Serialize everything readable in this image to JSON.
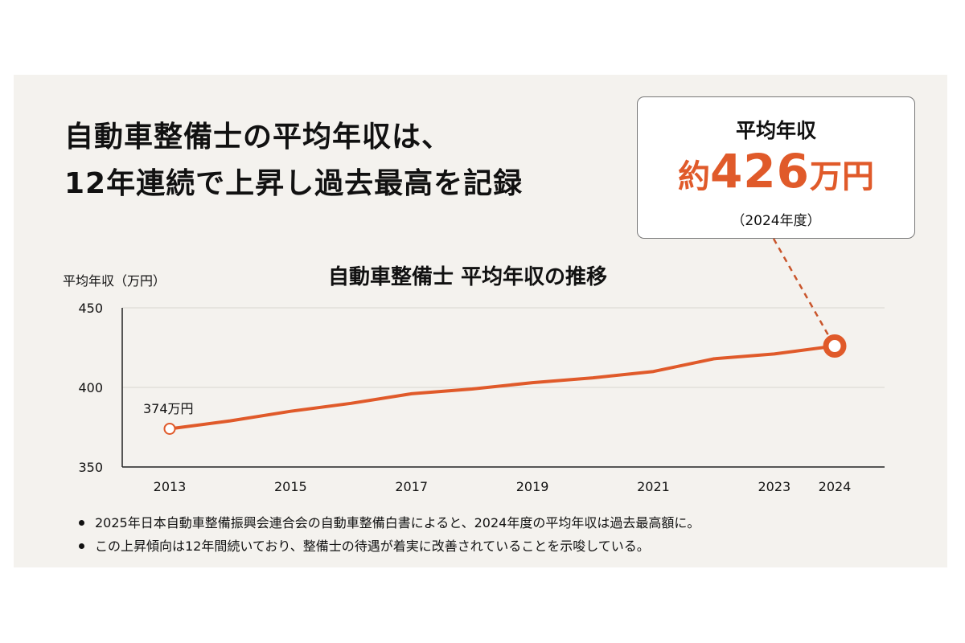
{
  "headline": {
    "line1": "自動車整備士の平均年収は、",
    "line2": "12年連続で上昇し過去最高を記録"
  },
  "callout": {
    "label": "平均年収",
    "prefix": "約",
    "value": "426",
    "unit": "万円",
    "note": "（2024年度）"
  },
  "colors": {
    "accent": "#e05a2a",
    "background": "#f4f2ee",
    "text": "#111111",
    "grid": "#d9d6d0"
  },
  "chart_data": {
    "type": "line",
    "title": "自動車整備士 平均年収の推移",
    "xlabel": "",
    "ylabel": "平均年収（万円）",
    "ylim": [
      350,
      450
    ],
    "yticks": [
      350,
      400,
      450
    ],
    "xticks": [
      "2013",
      "2015",
      "2017",
      "2019",
      "2021",
      "2023",
      "2024"
    ],
    "grid": true,
    "legend": null,
    "x": [
      2013,
      2014,
      2015,
      2016,
      2017,
      2018,
      2019,
      2020,
      2021,
      2022,
      2023,
      2024
    ],
    "series": [
      {
        "name": "平均年収（万円）",
        "values": [
          374,
          379,
          385,
          390,
          396,
          399,
          403,
          406,
          410,
          418,
          421,
          426
        ]
      }
    ],
    "annotations": [
      {
        "x": 2013,
        "y": 374,
        "text": "374万円"
      },
      {
        "x": 2024,
        "y": 426,
        "text": "約426万円（2024年度）",
        "style": "callout"
      }
    ]
  },
  "bullets": [
    "2025年日本自動車整備振興会連合会の自動車整備白書によると、2024年度の平均年収は過去最高額に。",
    "この上昇傾向は12年間続いており、整備士の待遇が着実に改善されていることを示唆している。"
  ]
}
